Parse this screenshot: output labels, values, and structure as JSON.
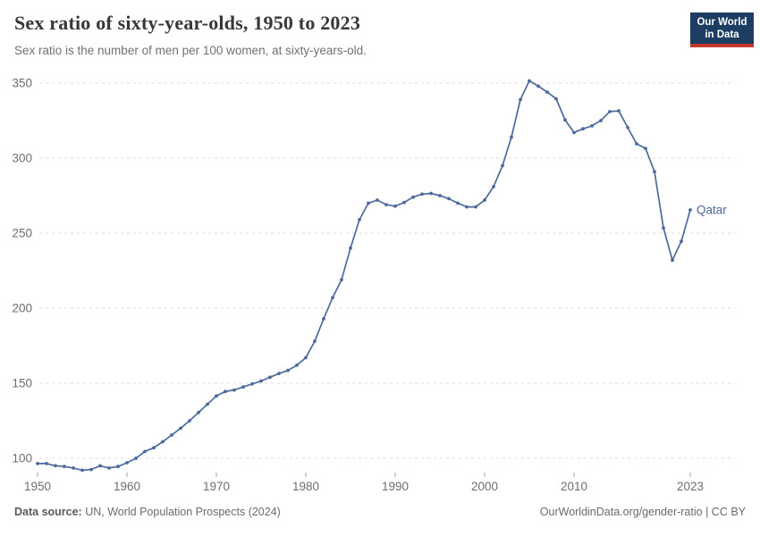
{
  "header": {
    "title": "Sex ratio of sixty-year-olds, 1950 to 2023",
    "subtitle": "Sex ratio is the number of men per 100 women, at sixty-years-old."
  },
  "logo": {
    "line1": "Our World",
    "line2": "in Data",
    "bg_color": "#1d3d63",
    "bar_color": "#c5382c"
  },
  "chart_data": {
    "type": "line",
    "title": "Sex ratio of sixty-year-olds, 1950 to 2023",
    "xlabel": "",
    "ylabel": "",
    "grid": "dashed horizontal gridlines",
    "legend_position": "end-of-line entity label",
    "xticks": [
      1950,
      1960,
      1970,
      1980,
      1990,
      2000,
      2010,
      2023
    ],
    "yticks": [
      100,
      150,
      200,
      250,
      300,
      350
    ],
    "xlim": [
      1950,
      2023
    ],
    "ylim": [
      91,
      352
    ],
    "series": [
      {
        "name": "Qatar",
        "color": "#4C6A9C",
        "x": [
          1950,
          1951,
          1952,
          1953,
          1954,
          1955,
          1956,
          1957,
          1958,
          1959,
          1960,
          1961,
          1962,
          1963,
          1964,
          1965,
          1966,
          1967,
          1968,
          1969,
          1970,
          1971,
          1972,
          1973,
          1974,
          1975,
          1976,
          1977,
          1978,
          1979,
          1980,
          1981,
          1982,
          1983,
          1984,
          1985,
          1986,
          1987,
          1988,
          1989,
          1990,
          1991,
          1992,
          1993,
          1994,
          1995,
          1996,
          1997,
          1998,
          1999,
          2000,
          2001,
          2002,
          2003,
          2004,
          2005,
          2006,
          2007,
          2008,
          2009,
          2010,
          2011,
          2012,
          2013,
          2014,
          2015,
          2016,
          2017,
          2018,
          2019,
          2020,
          2021,
          2022,
          2023
        ],
        "values": [
          96.5,
          96.5,
          95,
          94.5,
          93.5,
          92,
          92.5,
          95,
          93.5,
          94.5,
          97,
          100,
          104.5,
          107,
          111,
          115.5,
          120,
          125,
          130.5,
          136,
          141.5,
          144.5,
          145.5,
          147.5,
          149.5,
          151.5,
          154,
          156.5,
          158.5,
          162,
          167,
          178,
          193,
          207,
          219,
          240,
          259,
          270,
          272,
          269,
          268,
          270.5,
          274,
          276,
          276.5,
          275,
          273,
          270,
          267.5,
          267.5,
          272,
          281,
          295,
          314,
          339,
          351.5,
          348,
          344,
          339.5,
          325.5,
          317,
          319.5,
          321.5,
          325,
          331,
          331.5,
          320.5,
          309.5,
          306.5,
          291,
          253.5,
          232,
          244.5,
          265.5
        ]
      }
    ]
  },
  "footer": {
    "source_label": "Data source:",
    "source_text": " UN, World Population Prospects (2024)",
    "url": "OurWorldinData.org/gender-ratio",
    "separator": " | ",
    "license": "CC BY"
  }
}
